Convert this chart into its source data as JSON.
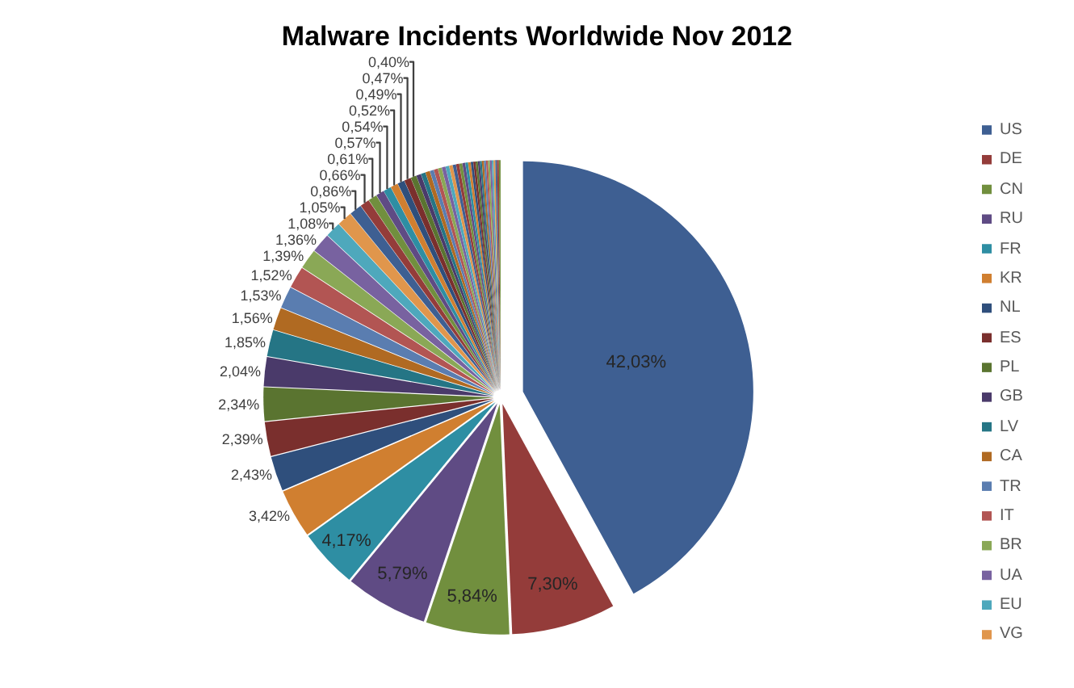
{
  "chart_data": {
    "type": "pie",
    "title": "Malware Incidents Worldwide Nov 2012",
    "legend": "right",
    "categories": [
      "US",
      "DE",
      "CN",
      "RU",
      "FR",
      "KR",
      "NL",
      "ES",
      "PL",
      "GB",
      "LV",
      "CA",
      "TR",
      "IT",
      "BR",
      "UA",
      "EU",
      "VG",
      null,
      null,
      null,
      null,
      null,
      null,
      null,
      null,
      null,
      null,
      null,
      null,
      null,
      null,
      null,
      null,
      null,
      null,
      null,
      null,
      null,
      null,
      null,
      null,
      null,
      null,
      null,
      null,
      null,
      null,
      null,
      null,
      null,
      null,
      null,
      null,
      null,
      null,
      null
    ],
    "values": [
      42.03,
      7.3,
      5.84,
      5.79,
      4.17,
      3.42,
      2.43,
      2.39,
      2.34,
      2.04,
      1.85,
      1.56,
      1.53,
      1.52,
      1.39,
      1.36,
      1.08,
      1.05,
      0.86,
      0.66,
      0.61,
      0.57,
      0.54,
      0.52,
      0.49,
      0.47,
      0.4,
      0.33,
      0.32,
      0.31,
      0.28,
      0.28,
      0.27,
      0.26,
      0.25,
      0.24,
      0.23,
      0.22,
      0.21,
      0.2,
      0.19,
      0.18,
      0.17,
      0.16,
      0.15,
      0.14,
      0.13,
      0.14,
      0.14,
      0.13,
      0.13,
      0.13,
      0.12,
      0.12,
      0.12,
      0.12,
      0.12
    ],
    "value_labels": [
      "42,03%",
      "7,30%",
      "5,84%",
      "5,79%",
      "4,17%",
      "3,42%",
      "2,43%",
      "2,39%",
      "2,34%",
      "2,04%",
      "1,85%",
      "1,56%",
      "1,53%",
      "1,52%",
      "1,39%",
      "1,36%",
      "1,08%",
      "1,05%",
      "0,86%",
      "0,66%",
      "0,61%",
      "0,57%",
      "0,54%",
      "0,52%",
      "0,49%",
      "0,47%",
      "0,40%",
      null,
      null,
      null,
      null,
      null,
      null,
      null,
      null,
      null,
      null,
      null,
      null,
      null,
      null,
      null,
      null,
      null,
      null,
      null,
      null,
      null,
      null,
      null,
      null,
      null,
      null,
      null,
      null,
      null,
      null
    ],
    "colors": [
      "#3e5f92",
      "#943c3a",
      "#718f3e",
      "#5f4b84",
      "#2e8ea3",
      "#d07f30",
      "#2f4f7c",
      "#7a2f2d",
      "#5a7430",
      "#4a3a6a",
      "#257585",
      "#b06a22",
      "#5a7db0",
      "#b25553",
      "#8aa856",
      "#7862a0",
      "#4ea8bc",
      "#e0964c",
      "#3e5f92",
      "#943c3a",
      "#718f3e",
      "#5f4b84",
      "#2e8ea3",
      "#d07f30",
      "#2f4f7c",
      "#7a2f2d",
      "#5a7430",
      "#4a3a6a",
      "#257585",
      "#b06a22",
      "#5a7db0",
      "#b25553",
      "#8aa856",
      "#7862a0",
      "#4ea8bc",
      "#e0964c",
      "#3e5f92",
      "#943c3a",
      "#718f3e",
      "#5f4b84",
      "#2e8ea3",
      "#d07f30",
      "#2f4f7c",
      "#7a2f2d",
      "#5a7430",
      "#4a3a6a",
      "#257585",
      "#b06a22",
      "#5a7db0",
      "#b25553",
      "#8aa856",
      "#7862a0",
      "#4ea8bc",
      "#e0964c",
      "#3e5f92",
      "#943c3a",
      "#718f3e"
    ]
  }
}
